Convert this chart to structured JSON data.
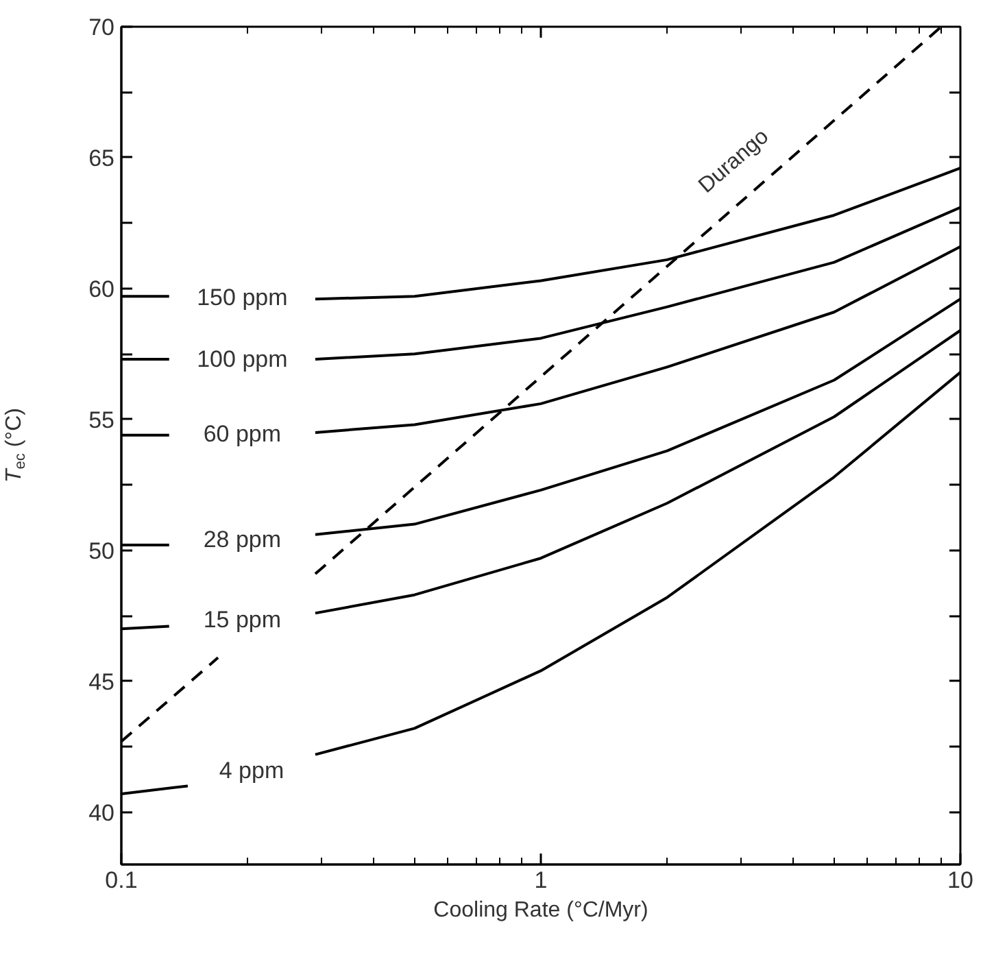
{
  "chart_data": {
    "type": "line",
    "xlabel": "Cooling Rate (°C/Myr)",
    "ylabel": "T$_{ec}$ (°C)",
    "log": "x",
    "xlim": [
      0.1,
      10
    ],
    "xticks": [
      0.1,
      1,
      10
    ],
    "ylim": [
      38,
      70
    ],
    "yticks": [
      40,
      {
        "value": 42.5,
        "label": null
      },
      45,
      {
        "value": 47.5,
        "label": null
      },
      50,
      {
        "value": 52.5,
        "label": null
      },
      55,
      {
        "value": 57.5,
        "label": null
      },
      60,
      {
        "value": 62.5,
        "label": null
      },
      65,
      {
        "value": 67.5,
        "label": null
      },
      70
    ],
    "grid": false,
    "legend": false,
    "marker": "none",
    "series": [
      {
        "name": "150 ppm",
        "color": "#000000",
        "line_style": "solid",
        "x": [
          0.1,
          0.13,
          0.2,
          0.29,
          0.5,
          1,
          2,
          5,
          10
        ],
        "values": [
          59.7,
          59.7,
          null,
          59.6,
          59.7,
          60.3,
          61.1,
          62.8,
          64.6
        ]
      },
      {
        "name": "100 ppm",
        "color": "#000000",
        "line_style": "solid",
        "x": [
          0.1,
          0.13,
          0.2,
          0.29,
          0.5,
          1,
          2,
          5,
          10
        ],
        "values": [
          57.3,
          57.3,
          null,
          57.3,
          57.5,
          58.1,
          59.3,
          61.0,
          63.1
        ]
      },
      {
        "name": "60 ppm",
        "color": "#000000",
        "line_style": "solid",
        "x": [
          0.1,
          0.13,
          0.2,
          0.29,
          0.5,
          1,
          2,
          5,
          10
        ],
        "values": [
          54.4,
          54.4,
          null,
          54.5,
          54.8,
          55.6,
          57.0,
          59.1,
          61.6
        ]
      },
      {
        "name": "28 ppm",
        "color": "#000000",
        "line_style": "solid",
        "x": [
          0.1,
          0.13,
          0.2,
          0.29,
          0.5,
          1,
          2,
          5,
          10
        ],
        "values": [
          50.2,
          50.2,
          null,
          50.6,
          51.0,
          52.3,
          53.8,
          56.5,
          59.6
        ]
      },
      {
        "name": "15 ppm",
        "color": "#000000",
        "line_style": "solid",
        "x": [
          0.1,
          0.13,
          0.2,
          0.29,
          0.5,
          1,
          2,
          5,
          10
        ],
        "values": [
          47.0,
          47.1,
          null,
          47.6,
          48.3,
          49.7,
          51.8,
          55.1,
          58.4
        ]
      },
      {
        "name": "4 ppm",
        "color": "#000000",
        "line_style": "solid",
        "x": [
          0.1,
          0.144,
          0.2,
          0.29,
          0.5,
          1,
          2,
          5,
          10
        ],
        "values": [
          40.7,
          41.0,
          null,
          42.2,
          43.2,
          45.4,
          48.2,
          52.8,
          56.8
        ]
      },
      {
        "name": "Durango",
        "color": "#000000",
        "line_style": "dashed",
        "x": [
          0.1,
          0.17,
          0.22,
          0.29,
          9
        ],
        "values": [
          42.7,
          45.9,
          null,
          49.1,
          70
        ]
      }
    ]
  }
}
